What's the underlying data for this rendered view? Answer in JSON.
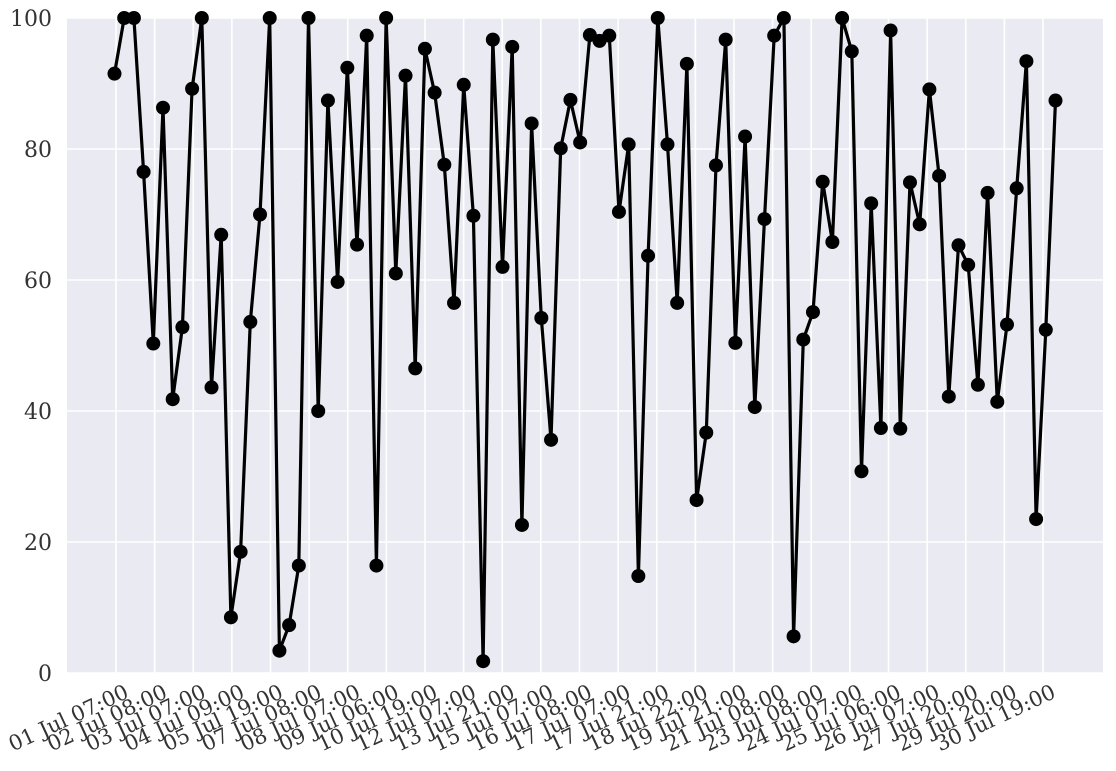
{
  "chart_data": {
    "type": "line",
    "title": "",
    "xlabel": "",
    "ylabel": "",
    "ylim": [
      0,
      100
    ],
    "yticks": [
      0,
      20,
      40,
      60,
      80,
      100
    ],
    "grid": true,
    "legend": "none",
    "colors": {
      "background": "#eaeaf2",
      "grid": "#ffffff",
      "line": "#000000",
      "marker": "#000000"
    },
    "x_tick_labels": [
      "01 Jul 07:00",
      "02 Jul 08:00",
      "03 Jul 07:00",
      "04 Jul 09:00",
      "05 Jul 19:00",
      "07 Jul 08:00",
      "08 Jul 07:00",
      "09 Jul 06:00",
      "10 Jul 19:00",
      "12 Jul 07:00",
      "13 Jul 21:00",
      "15 Jul 07:00",
      "16 Jul 08:00",
      "17 Jul 07:00",
      "17 Jul 21:00",
      "18 Jul 22:00",
      "19 Jul 21:00",
      "21 Jul 08:00",
      "23 Jul 08:00",
      "24 Jul 07:00",
      "25 Jul 06:00",
      "26 Jul 07:00",
      "27 Jul 20:00",
      "29 Jul 20:00",
      "30 Jul 19:00"
    ],
    "series": [
      {
        "values": [
          91.5,
          100,
          100,
          76.5,
          50.3,
          86.3,
          41.8,
          52.8,
          89.2,
          100,
          43.6,
          66.9,
          8.5,
          18.5,
          53.6,
          70.0,
          100,
          3.4,
          7.3,
          16.4,
          100,
          40.0,
          87.4,
          59.7,
          92.4,
          65.4,
          97.3,
          16.4,
          100,
          61.0,
          91.2,
          46.5,
          95.3,
          88.6,
          77.6,
          56.5,
          89.8,
          69.8,
          1.8,
          96.7,
          62.0,
          95.6,
          22.6,
          83.9,
          54.2,
          35.6,
          80.1,
          87.5,
          81.0,
          97.4,
          96.5,
          97.3,
          70.4,
          80.7,
          14.8,
          63.7,
          100,
          80.7,
          56.5,
          93.0,
          26.4,
          36.7,
          77.5,
          96.7,
          50.4,
          81.9,
          40.6,
          69.3,
          97.3,
          100,
          5.6,
          50.9,
          55.1,
          75.0,
          65.8,
          100,
          94.9,
          30.8,
          71.7,
          37.4,
          98.1,
          37.3,
          74.9,
          68.5,
          89.1,
          75.9,
          42.2,
          65.3,
          62.3,
          44.0,
          73.3,
          41.4,
          53.2,
          74.0,
          93.4,
          23.5,
          52.4,
          87.4
        ]
      }
    ]
  }
}
